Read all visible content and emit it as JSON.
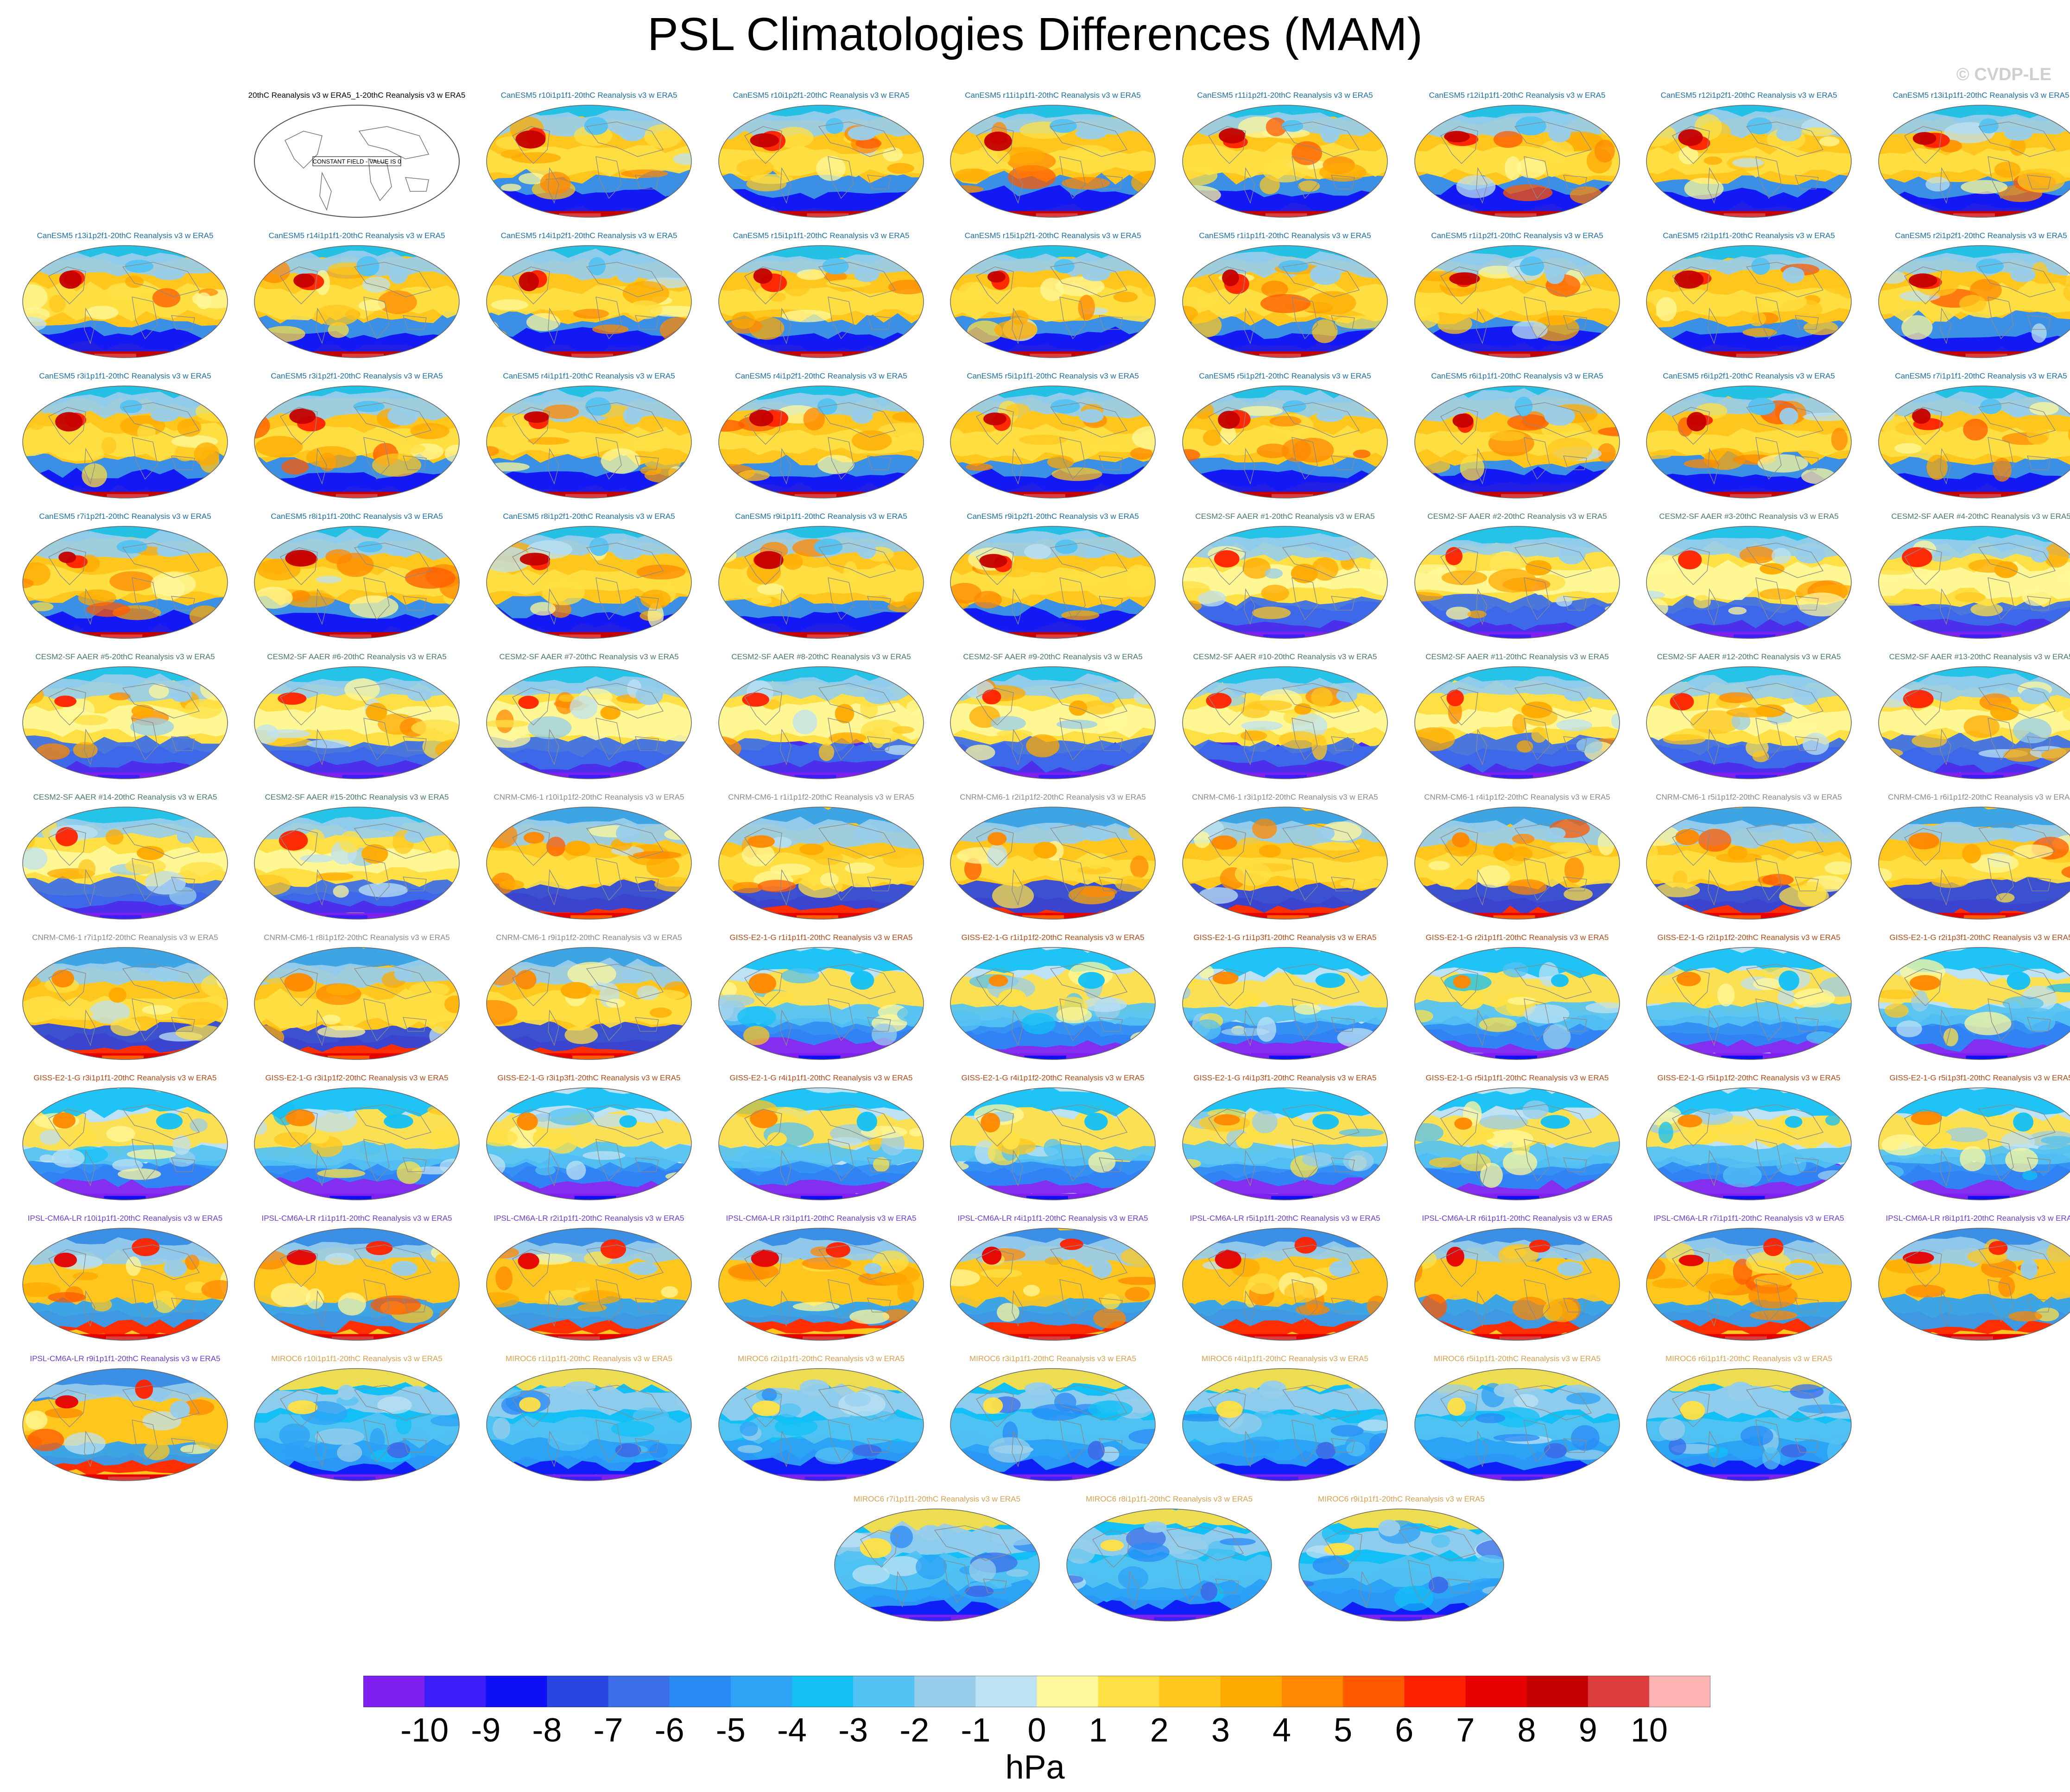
{
  "chart_data": {
    "type": "heatmap",
    "title": "PSL Climatologies Differences (MAM)",
    "watermark": "© CVDP-LE",
    "units": "hPa",
    "colorbar": {
      "tick_labels": [
        "-10",
        "-9",
        "-8",
        "-7",
        "-6",
        "-5",
        "-4",
        "-3",
        "-2",
        "-1",
        "0",
        "1",
        "2",
        "3",
        "4",
        "5",
        "6",
        "7",
        "8",
        "9",
        "10"
      ],
      "colors": [
        "#7f1ff0",
        "#3c1ff8",
        "#0f0ff5",
        "#2a46e0",
        "#3b6ee8",
        "#2a8af5",
        "#2ea2f5",
        "#12c0f5",
        "#54c2f2",
        "#98cdeb",
        "#bde2f3",
        "#fff89b",
        "#ffe044",
        "#ffc71e",
        "#ffaa00",
        "#ff8800",
        "#ff5a00",
        "#ff2200",
        "#e60000",
        "#c40000",
        "#dc3c3c",
        "#ffb4b4"
      ]
    },
    "panel_groups": {
      "constant": {
        "label_color": "#000000",
        "note": "CONSTANT FIELD - VALUE IS 0"
      },
      "canesm5": {
        "label_color": "#1e6fa0"
      },
      "cesm2": {
        "label_color": "#4a7a62"
      },
      "cnrm": {
        "label_color": "#8a8a8a"
      },
      "giss": {
        "label_color": "#b04a1a"
      },
      "ipsl": {
        "label_color": "#6a3fd0"
      },
      "miroc": {
        "label_color": "#d9a050"
      }
    },
    "panels": [
      {
        "label": "20thC Reanalysis v3 w ERA5_1-20thC Reanalysis v3 w ERA5",
        "group": "constant"
      },
      {
        "label": "CanESM5 r10i1p1f1-20thC Reanalysis v3 w ERA5",
        "group": "canesm5"
      },
      {
        "label": "CanESM5 r10i1p2f1-20thC Reanalysis v3 w ERA5",
        "group": "canesm5"
      },
      {
        "label": "CanESM5 r11i1p1f1-20thC Reanalysis v3 w ERA5",
        "group": "canesm5"
      },
      {
        "label": "CanESM5 r11i1p2f1-20thC Reanalysis v3 w ERA5",
        "group": "canesm5"
      },
      {
        "label": "CanESM5 r12i1p1f1-20thC Reanalysis v3 w ERA5",
        "group": "canesm5"
      },
      {
        "label": "CanESM5 r12i1p2f1-20thC Reanalysis v3 w ERA5",
        "group": "canesm5"
      },
      {
        "label": "CanESM5 r13i1p1f1-20thC Reanalysis v3 w ERA5",
        "group": "canesm5"
      },
      {
        "label": "CanESM5 r13i1p2f1-20thC Reanalysis v3 w ERA5",
        "group": "canesm5"
      },
      {
        "label": "CanESM5 r14i1p1f1-20thC Reanalysis v3 w ERA5",
        "group": "canesm5"
      },
      {
        "label": "CanESM5 r14i1p2f1-20thC Reanalysis v3 w ERA5",
        "group": "canesm5"
      },
      {
        "label": "CanESM5 r15i1p1f1-20thC Reanalysis v3 w ERA5",
        "group": "canesm5"
      },
      {
        "label": "CanESM5 r15i1p2f1-20thC Reanalysis v3 w ERA5",
        "group": "canesm5"
      },
      {
        "label": "CanESM5 r1i1p1f1-20thC Reanalysis v3 w ERA5",
        "group": "canesm5"
      },
      {
        "label": "CanESM5 r1i1p2f1-20thC Reanalysis v3 w ERA5",
        "group": "canesm5"
      },
      {
        "label": "CanESM5 r2i1p1f1-20thC Reanalysis v3 w ERA5",
        "group": "canesm5"
      },
      {
        "label": "CanESM5 r2i1p2f1-20thC Reanalysis v3 w ERA5",
        "group": "canesm5"
      },
      {
        "label": "CanESM5 r3i1p1f1-20thC Reanalysis v3 w ERA5",
        "group": "canesm5"
      },
      {
        "label": "CanESM5 r3i1p2f1-20thC Reanalysis v3 w ERA5",
        "group": "canesm5"
      },
      {
        "label": "CanESM5 r4i1p1f1-20thC Reanalysis v3 w ERA5",
        "group": "canesm5"
      },
      {
        "label": "CanESM5 r4i1p2f1-20thC Reanalysis v3 w ERA5",
        "group": "canesm5"
      },
      {
        "label": "CanESM5 r5i1p1f1-20thC Reanalysis v3 w ERA5",
        "group": "canesm5"
      },
      {
        "label": "CanESM5 r5i1p2f1-20thC Reanalysis v3 w ERA5",
        "group": "canesm5"
      },
      {
        "label": "CanESM5 r6i1p1f1-20thC Reanalysis v3 w ERA5",
        "group": "canesm5"
      },
      {
        "label": "CanESM5 r6i1p2f1-20thC Reanalysis v3 w ERA5",
        "group": "canesm5"
      },
      {
        "label": "CanESM5 r7i1p1f1-20thC Reanalysis v3 w ERA5",
        "group": "canesm5"
      },
      {
        "label": "CanESM5 r7i1p2f1-20thC Reanalysis v3 w ERA5",
        "group": "canesm5"
      },
      {
        "label": "CanESM5 r8i1p1f1-20thC Reanalysis v3 w ERA5",
        "group": "canesm5"
      },
      {
        "label": "CanESM5 r8i1p2f1-20thC Reanalysis v3 w ERA5",
        "group": "canesm5"
      },
      {
        "label": "CanESM5 r9i1p1f1-20thC Reanalysis v3 w ERA5",
        "group": "canesm5"
      },
      {
        "label": "CanESM5 r9i1p2f1-20thC Reanalysis v3 w ERA5",
        "group": "canesm5"
      },
      {
        "label": "CESM2-SF AAER #1-20thC Reanalysis v3 w ERA5",
        "group": "cesm2"
      },
      {
        "label": "CESM2-SF AAER #2-20thC Reanalysis v3 w ERA5",
        "group": "cesm2"
      },
      {
        "label": "CESM2-SF AAER #3-20thC Reanalysis v3 w ERA5",
        "group": "cesm2"
      },
      {
        "label": "CESM2-SF AAER #4-20thC Reanalysis v3 w ERA5",
        "group": "cesm2"
      },
      {
        "label": "CESM2-SF AAER #5-20thC Reanalysis v3 w ERA5",
        "group": "cesm2"
      },
      {
        "label": "CESM2-SF AAER #6-20thC Reanalysis v3 w ERA5",
        "group": "cesm2"
      },
      {
        "label": "CESM2-SF AAER #7-20thC Reanalysis v3 w ERA5",
        "group": "cesm2"
      },
      {
        "label": "CESM2-SF AAER #8-20thC Reanalysis v3 w ERA5",
        "group": "cesm2"
      },
      {
        "label": "CESM2-SF AAER #9-20thC Reanalysis v3 w ERA5",
        "group": "cesm2"
      },
      {
        "label": "CESM2-SF AAER #10-20thC Reanalysis v3 w ERA5",
        "group": "cesm2"
      },
      {
        "label": "CESM2-SF AAER #11-20thC Reanalysis v3 w ERA5",
        "group": "cesm2"
      },
      {
        "label": "CESM2-SF AAER #12-20thC Reanalysis v3 w ERA5",
        "group": "cesm2"
      },
      {
        "label": "CESM2-SF AAER #13-20thC Reanalysis v3 w ERA5",
        "group": "cesm2"
      },
      {
        "label": "CESM2-SF AAER #14-20thC Reanalysis v3 w ERA5",
        "group": "cesm2"
      },
      {
        "label": "CESM2-SF AAER #15-20thC Reanalysis v3 w ERA5",
        "group": "cesm2"
      },
      {
        "label": "CNRM-CM6-1 r10i1p1f2-20thC Reanalysis v3 w ERA5",
        "group": "cnrm"
      },
      {
        "label": "CNRM-CM6-1 r1i1p1f2-20thC Reanalysis v3 w ERA5",
        "group": "cnrm"
      },
      {
        "label": "CNRM-CM6-1 r2i1p1f2-20thC Reanalysis v3 w ERA5",
        "group": "cnrm"
      },
      {
        "label": "CNRM-CM6-1 r3i1p1f2-20thC Reanalysis v3 w ERA5",
        "group": "cnrm"
      },
      {
        "label": "CNRM-CM6-1 r4i1p1f2-20thC Reanalysis v3 w ERA5",
        "group": "cnrm"
      },
      {
        "label": "CNRM-CM6-1 r5i1p1f2-20thC Reanalysis v3 w ERA5",
        "group": "cnrm"
      },
      {
        "label": "CNRM-CM6-1 r6i1p1f2-20thC Reanalysis v3 w ERA5",
        "group": "cnrm"
      },
      {
        "label": "CNRM-CM6-1 r7i1p1f2-20thC Reanalysis v3 w ERA5",
        "group": "cnrm"
      },
      {
        "label": "CNRM-CM6-1 r8i1p1f2-20thC Reanalysis v3 w ERA5",
        "group": "cnrm"
      },
      {
        "label": "CNRM-CM6-1 r9i1p1f2-20thC Reanalysis v3 w ERA5",
        "group": "cnrm"
      },
      {
        "label": "GISS-E2-1-G r1i1p1f1-20thC Reanalysis v3 w ERA5",
        "group": "giss"
      },
      {
        "label": "GISS-E2-1-G r1i1p1f2-20thC Reanalysis v3 w ERA5",
        "group": "giss"
      },
      {
        "label": "GISS-E2-1-G r1i1p3f1-20thC Reanalysis v3 w ERA5",
        "group": "giss"
      },
      {
        "label": "GISS-E2-1-G r2i1p1f1-20thC Reanalysis v3 w ERA5",
        "group": "giss"
      },
      {
        "label": "GISS-E2-1-G r2i1p1f2-20thC Reanalysis v3 w ERA5",
        "group": "giss"
      },
      {
        "label": "GISS-E2-1-G r2i1p3f1-20thC Reanalysis v3 w ERA5",
        "group": "giss"
      },
      {
        "label": "GISS-E2-1-G r3i1p1f1-20thC Reanalysis v3 w ERA5",
        "group": "giss"
      },
      {
        "label": "GISS-E2-1-G r3i1p1f2-20thC Reanalysis v3 w ERA5",
        "group": "giss"
      },
      {
        "label": "GISS-E2-1-G r3i1p3f1-20thC Reanalysis v3 w ERA5",
        "group": "giss"
      },
      {
        "label": "GISS-E2-1-G r4i1p1f1-20thC Reanalysis v3 w ERA5",
        "group": "giss"
      },
      {
        "label": "GISS-E2-1-G r4i1p1f2-20thC Reanalysis v3 w ERA5",
        "group": "giss"
      },
      {
        "label": "GISS-E2-1-G r4i1p3f1-20thC Reanalysis v3 w ERA5",
        "group": "giss"
      },
      {
        "label": "GISS-E2-1-G r5i1p1f1-20thC Reanalysis v3 w ERA5",
        "group": "giss"
      },
      {
        "label": "GISS-E2-1-G r5i1p1f2-20thC Reanalysis v3 w ERA5",
        "group": "giss"
      },
      {
        "label": "GISS-E2-1-G r5i1p3f1-20thC Reanalysis v3 w ERA5",
        "group": "giss"
      },
      {
        "label": "IPSL-CM6A-LR r10i1p1f1-20thC Reanalysis v3 w ERA5",
        "group": "ipsl"
      },
      {
        "label": "IPSL-CM6A-LR r1i1p1f1-20thC Reanalysis v3 w ERA5",
        "group": "ipsl"
      },
      {
        "label": "IPSL-CM6A-LR r2i1p1f1-20thC Reanalysis v3 w ERA5",
        "group": "ipsl"
      },
      {
        "label": "IPSL-CM6A-LR r3i1p1f1-20thC Reanalysis v3 w ERA5",
        "group": "ipsl"
      },
      {
        "label": "IPSL-CM6A-LR r4i1p1f1-20thC Reanalysis v3 w ERA5",
        "group": "ipsl"
      },
      {
        "label": "IPSL-CM6A-LR r5i1p1f1-20thC Reanalysis v3 w ERA5",
        "group": "ipsl"
      },
      {
        "label": "IPSL-CM6A-LR r6i1p1f1-20thC Reanalysis v3 w ERA5",
        "group": "ipsl"
      },
      {
        "label": "IPSL-CM6A-LR r7i1p1f1-20thC Reanalysis v3 w ERA5",
        "group": "ipsl"
      },
      {
        "label": "IPSL-CM6A-LR r8i1p1f1-20thC Reanalysis v3 w ERA5",
        "group": "ipsl"
      },
      {
        "label": "IPSL-CM6A-LR r9i1p1f1-20thC Reanalysis v3 w ERA5",
        "group": "ipsl"
      },
      {
        "label": "MIROC6 r10i1p1f1-20thC Reanalysis v3 w ERA5",
        "group": "miroc"
      },
      {
        "label": "MIROC6 r1i1p1f1-20thC Reanalysis v3 w ERA5",
        "group": "miroc"
      },
      {
        "label": "MIROC6 r2i1p1f1-20thC Reanalysis v3 w ERA5",
        "group": "miroc"
      },
      {
        "label": "MIROC6 r3i1p1f1-20thC Reanalysis v3 w ERA5",
        "group": "miroc"
      },
      {
        "label": "MIROC6 r4i1p1f1-20thC Reanalysis v3 w ERA5",
        "group": "miroc"
      },
      {
        "label": "MIROC6 r5i1p1f1-20thC Reanalysis v3 w ERA5",
        "group": "miroc"
      },
      {
        "label": "MIROC6 r6i1p1f1-20thC Reanalysis v3 w ERA5",
        "group": "miroc"
      },
      {
        "label": "MIROC6 r7i1p1f1-20thC Reanalysis v3 w ERA5",
        "group": "miroc"
      },
      {
        "label": "MIROC6 r8i1p1f1-20thC Reanalysis v3 w ERA5",
        "group": "miroc"
      },
      {
        "label": "MIROC6 r9i1p1f1-20thC Reanalysis v3 w ERA5",
        "group": "miroc"
      }
    ]
  }
}
